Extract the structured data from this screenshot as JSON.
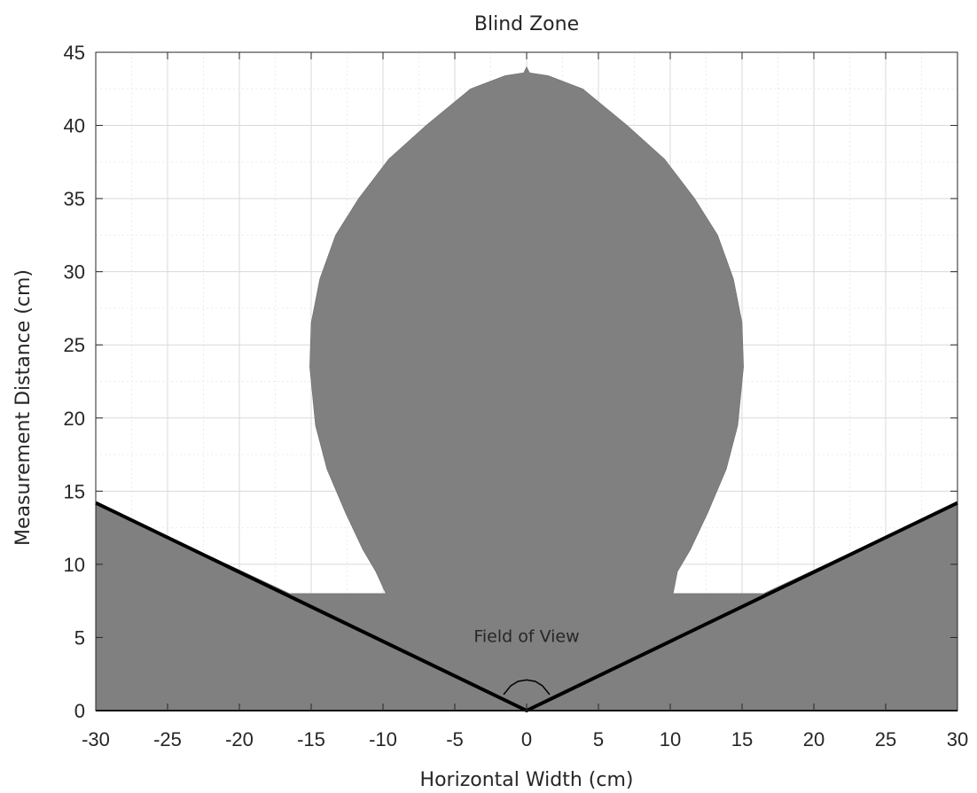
{
  "chart_data": {
    "type": "area",
    "title": "Blind Zone",
    "xlabel": "Horizontal Width (cm)",
    "ylabel": "Measurement Distance (cm)",
    "xlim": [
      -30,
      30
    ],
    "ylim": [
      0,
      45
    ],
    "xticks": [
      -30,
      -25,
      -20,
      -15,
      -10,
      -5,
      0,
      5,
      10,
      15,
      20,
      25,
      30
    ],
    "yticks": [
      0,
      5,
      10,
      15,
      20,
      25,
      30,
      35,
      40,
      45
    ],
    "grid": true,
    "series": [
      {
        "kind": "filled-region",
        "color": "#808080",
        "x": [
          -30,
          -30,
          -16.5,
          -9.8,
          -10.5,
          -11.4,
          -12.6,
          -13.9,
          -14.7,
          -15.1,
          -15.0,
          -14.4,
          -13.3,
          -11.7,
          -9.6,
          -7.0,
          -3.9,
          -1.5,
          -0.2,
          0,
          0.2,
          1.5,
          3.9,
          7.0,
          9.6,
          11.7,
          13.3,
          14.4,
          15.0,
          15.1,
          14.7,
          13.9,
          12.6,
          11.4,
          10.5,
          10.2,
          16.5,
          30,
          30
        ],
        "y": [
          0,
          14.2,
          8.0,
          8.0,
          9.5,
          11.0,
          13.5,
          16.5,
          19.5,
          23.5,
          26.5,
          29.5,
          32.5,
          35.0,
          37.7,
          40.0,
          42.5,
          43.4,
          43.6,
          44.0,
          43.6,
          43.4,
          42.5,
          40.0,
          37.7,
          35.0,
          32.5,
          29.5,
          26.5,
          23.5,
          19.5,
          16.5,
          13.5,
          11.0,
          9.5,
          8.0,
          8.0,
          14.2,
          0
        ]
      },
      {
        "kind": "line",
        "color": "#000000",
        "x": [
          -30,
          0,
          30
        ],
        "y": [
          14.2,
          0,
          14.2
        ]
      },
      {
        "kind": "arc",
        "color": "#000000",
        "x": [
          -1.6,
          -1.1,
          -0.6,
          0,
          0.6,
          1.1,
          1.6
        ],
        "y": [
          1.1,
          1.7,
          2.0,
          2.1,
          2.0,
          1.7,
          1.1
        ]
      }
    ],
    "annotations": [
      {
        "text": "Field of View",
        "x": 0,
        "y": 4.7
      }
    ]
  }
}
